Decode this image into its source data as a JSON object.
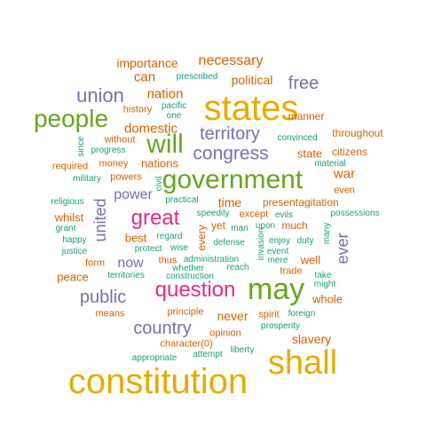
{
  "palette": {
    "orange": "#d95f02",
    "purple": "#7570b3",
    "green": "#66a61e",
    "teal": "#1b9e77",
    "gold": "#e6ab02",
    "magenta": "#e7298a"
  },
  "words": [
    {
      "text": "constitution",
      "color": "gold"
    },
    {
      "text": "shall",
      "color": "gold"
    },
    {
      "text": "states",
      "color": "gold"
    },
    {
      "text": "may",
      "color": "green"
    },
    {
      "text": "government",
      "color": "green"
    },
    {
      "text": "people",
      "color": "green"
    },
    {
      "text": "will",
      "color": "green"
    },
    {
      "text": "great",
      "color": "magenta"
    },
    {
      "text": "question",
      "color": "magenta"
    },
    {
      "text": "congress",
      "color": "purple"
    },
    {
      "text": "country",
      "color": "purple"
    },
    {
      "text": "union",
      "color": "purple"
    },
    {
      "text": "territory",
      "color": "purple"
    },
    {
      "text": "public",
      "color": "purple"
    },
    {
      "text": "free",
      "color": "purple"
    },
    {
      "text": "united",
      "color": "purple"
    },
    {
      "text": "ever",
      "color": "purple"
    },
    {
      "text": "now",
      "color": "purple"
    },
    {
      "text": "power",
      "color": "purple"
    },
    {
      "text": "necessary",
      "color": "orange"
    },
    {
      "text": "importance",
      "color": "orange"
    },
    {
      "text": "domestic",
      "color": "orange"
    },
    {
      "text": "nation",
      "color": "orange"
    },
    {
      "text": "can",
      "color": "orange"
    },
    {
      "text": "political",
      "color": "orange"
    },
    {
      "text": "war",
      "color": "orange"
    },
    {
      "text": "time",
      "color": "orange"
    },
    {
      "text": "nations",
      "color": "orange"
    },
    {
      "text": "state",
      "color": "orange"
    },
    {
      "text": "never",
      "color": "orange"
    },
    {
      "text": "slavery",
      "color": "orange"
    },
    {
      "text": "whole",
      "color": "orange"
    },
    {
      "text": "peace",
      "color": "orange"
    },
    {
      "text": "best",
      "color": "orange"
    },
    {
      "text": "whilst",
      "color": "orange"
    },
    {
      "text": "well",
      "color": "orange"
    },
    {
      "text": "throughout",
      "color": "orange"
    },
    {
      "text": "manner",
      "color": "orange"
    },
    {
      "text": "citizens",
      "color": "orange"
    },
    {
      "text": "history",
      "color": "orange"
    },
    {
      "text": "without",
      "color": "orange"
    },
    {
      "text": "money",
      "color": "orange"
    },
    {
      "text": "required",
      "color": "orange"
    },
    {
      "text": "powers",
      "color": "orange"
    },
    {
      "text": "even",
      "color": "orange"
    },
    {
      "text": "present",
      "color": "orange"
    },
    {
      "text": "agitation",
      "color": "orange"
    },
    {
      "text": "much",
      "color": "orange"
    },
    {
      "text": "yet",
      "color": "orange"
    },
    {
      "text": "except",
      "color": "orange"
    },
    {
      "text": "every",
      "color": "orange"
    },
    {
      "text": "thus",
      "color": "orange"
    },
    {
      "text": "trade",
      "color": "orange"
    },
    {
      "text": "form",
      "color": "orange"
    },
    {
      "text": "means",
      "color": "orange"
    },
    {
      "text": "principle",
      "color": "orange"
    },
    {
      "text": "spirit",
      "color": "orange"
    },
    {
      "text": "opinion",
      "color": "orange"
    },
    {
      "text": "character(0)",
      "color": "orange"
    },
    {
      "text": "prescribed",
      "color": "teal"
    },
    {
      "text": "pacific",
      "color": "teal"
    },
    {
      "text": "one",
      "color": "teal"
    },
    {
      "text": "convinced",
      "color": "teal"
    },
    {
      "text": "progress",
      "color": "teal"
    },
    {
      "text": "since",
      "color": "teal"
    },
    {
      "text": "military",
      "color": "teal"
    },
    {
      "text": "civil",
      "color": "teal"
    },
    {
      "text": "material",
      "color": "teal"
    },
    {
      "text": "religious",
      "color": "teal"
    },
    {
      "text": "practical",
      "color": "teal"
    },
    {
      "text": "possessions",
      "color": "teal"
    },
    {
      "text": "grant",
      "color": "teal"
    },
    {
      "text": "speedily",
      "color": "teal"
    },
    {
      "text": "evils",
      "color": "teal"
    },
    {
      "text": "happy",
      "color": "teal"
    },
    {
      "text": "regard",
      "color": "teal"
    },
    {
      "text": "man",
      "color": "teal"
    },
    {
      "text": "upon",
      "color": "teal"
    },
    {
      "text": "justice",
      "color": "teal"
    },
    {
      "text": "protect",
      "color": "teal"
    },
    {
      "text": "wise",
      "color": "teal"
    },
    {
      "text": "defense",
      "color": "teal"
    },
    {
      "text": "enjoy",
      "color": "teal"
    },
    {
      "text": "duty",
      "color": "teal"
    },
    {
      "text": "many",
      "color": "teal"
    },
    {
      "text": "invasion",
      "color": "teal"
    },
    {
      "text": "event",
      "color": "teal"
    },
    {
      "text": "administration",
      "color": "teal"
    },
    {
      "text": "mere",
      "color": "teal"
    },
    {
      "text": "whether",
      "color": "teal"
    },
    {
      "text": "reach",
      "color": "teal"
    },
    {
      "text": "take",
      "color": "teal"
    },
    {
      "text": "territories",
      "color": "teal"
    },
    {
      "text": "construction",
      "color": "teal"
    },
    {
      "text": "might",
      "color": "teal"
    },
    {
      "text": "foreign",
      "color": "teal"
    },
    {
      "text": "prosperity",
      "color": "teal"
    },
    {
      "text": "appropriate",
      "color": "teal"
    },
    {
      "text": "attempt",
      "color": "teal"
    },
    {
      "text": "liberty",
      "color": "teal"
    }
  ]
}
